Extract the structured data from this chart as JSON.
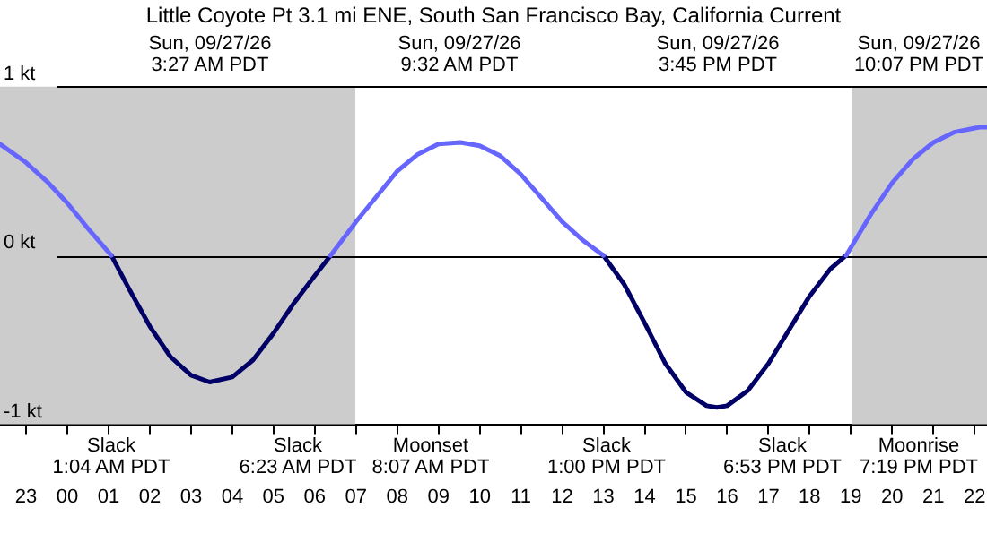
{
  "chart_data": {
    "type": "line",
    "title": "Little Coyote Pt 3.1 mi ENE, South San Francisco Bay, California Current",
    "xlim": [
      "--09-26T22:22",
      "--09-27T22:18"
    ],
    "xticks": [
      {
        "value": "--09-26T23:00",
        "label": "23"
      },
      {
        "value": "--09-27T00:00",
        "label": "00"
      },
      {
        "value": "--09-27T01:00",
        "label": "01"
      },
      {
        "value": "--09-27T02:00",
        "label": "02"
      },
      {
        "value": "--09-27T03:00",
        "label": "03"
      },
      {
        "value": "--09-27T04:00",
        "label": "04"
      },
      {
        "value": "--09-27T05:00",
        "label": "05"
      },
      {
        "value": "--09-27T06:00",
        "label": "06"
      },
      {
        "value": "--09-27T07:00",
        "label": "07"
      },
      {
        "value": "--09-27T08:00",
        "label": "08"
      },
      {
        "value": "--09-27T09:00",
        "label": "09"
      },
      {
        "value": "--09-27T10:00",
        "label": "10"
      },
      {
        "value": "--09-27T11:00",
        "label": "11"
      },
      {
        "value": "--09-27T12:00",
        "label": "12"
      },
      {
        "value": "--09-27T13:00",
        "label": "13"
      },
      {
        "value": "--09-27T14:00",
        "label": "14"
      },
      {
        "value": "--09-27T15:00",
        "label": "15"
      },
      {
        "value": "--09-27T16:00",
        "label": "16"
      },
      {
        "value": "--09-27T17:00",
        "label": "17"
      },
      {
        "value": "--09-27T18:00",
        "label": "18"
      },
      {
        "value": "--09-27T19:00",
        "label": "19"
      },
      {
        "value": "--09-27T20:00",
        "label": "20"
      },
      {
        "value": "--09-27T21:00",
        "label": "21"
      },
      {
        "value": "--09-27T22:00",
        "label": "22"
      }
    ],
    "ylim": [
      -1,
      1
    ],
    "yticks": [
      {
        "value": 1,
        "label": "1 kt"
      },
      {
        "value": 0,
        "label": "0 kt"
      },
      {
        "value": -1,
        "label": "-1 kt"
      }
    ],
    "grid": "y",
    "legend": false,
    "marker": "none",
    "line_style": "solid",
    "bands": [
      {
        "axis": "x",
        "from": "--09-26T22:22",
        "to": "--09-27T06:59",
        "color": "#cccccc"
      },
      {
        "axis": "x",
        "from": "--09-27T19:01",
        "to": "--09-27T22:18",
        "color": "#cccccc"
      }
    ],
    "series": [
      {
        "color": "#6666ff",
        "x": [
          "--09-26T22:22",
          "--09-26T23:00",
          "--09-26T23:30",
          "--09-27T00:00",
          "--09-27T00:30",
          "--09-27T01:04",
          "--09-27T03:27",
          "--09-27T06:23",
          "--09-27T07:00",
          "--09-27T07:30",
          "--09-27T08:00",
          "--09-27T08:30",
          "--09-27T09:00",
          "--09-27T09:32",
          "--09-27T10:00",
          "--09-27T10:30",
          "--09-27T11:00",
          "--09-27T11:30",
          "--09-27T12:00",
          "--09-27T12:30",
          "--09-27T13:00",
          "--09-27T15:45",
          "--09-27T18:53",
          "--09-27T19:30",
          "--09-27T20:00",
          "--09-27T20:30",
          "--09-27T21:00",
          "--09-27T21:30",
          "--09-27T22:07",
          "--09-27T22:18"
        ],
        "values": [
          0.66,
          0.55,
          0.44,
          0.31,
          0.16,
          0,
          null,
          0,
          0.2,
          0.35,
          0.5,
          0.6,
          0.66,
          0.67,
          0.65,
          0.59,
          0.48,
          0.34,
          0.2,
          0.09,
          0,
          null,
          0,
          0.25,
          0.43,
          0.57,
          0.67,
          0.73,
          0.76,
          0.76
        ]
      },
      {
        "color": "#000066",
        "x": [
          "--09-27T01:04",
          "--09-27T01:30",
          "--09-27T02:00",
          "--09-27T02:30",
          "--09-27T03:00",
          "--09-27T03:27",
          "--09-27T04:00",
          "--09-27T04:30",
          "--09-27T05:00",
          "--09-27T05:30",
          "--09-27T06:00",
          "--09-27T06:23",
          "--09-27T09:32",
          "--09-27T13:00",
          "--09-27T13:30",
          "--09-27T14:00",
          "--09-27T14:30",
          "--09-27T15:00",
          "--09-27T15:30",
          "--09-27T15:45",
          "--09-27T16:00",
          "--09-27T16:30",
          "--09-27T17:00",
          "--09-27T17:30",
          "--09-27T18:00",
          "--09-27T18:30",
          "--09-27T18:53"
        ],
        "values": [
          0,
          -0.2,
          -0.42,
          -0.6,
          -0.71,
          -0.75,
          -0.72,
          -0.62,
          -0.46,
          -0.28,
          -0.12,
          0,
          null,
          0,
          -0.17,
          -0.4,
          -0.64,
          -0.81,
          -0.89,
          -0.9,
          -0.89,
          -0.8,
          -0.64,
          -0.44,
          -0.24,
          -0.08,
          0
        ]
      }
    ],
    "annotations": [
      "Sun, 09/27/26\n3:27 AM PDT",
      "Sun, 09/27/26\n9:32 AM PDT",
      "Sun, 09/27/26\n3:45 PM PDT",
      "Sun, 09/27/26\n10:07 PM PDT",
      "Slack\n1:04 AM PDT",
      "Slack\n6:23 AM PDT",
      "Moonset\n8:07 AM PDT",
      "Slack\n1:00 PM PDT",
      "Slack\n6:53 PM PDT",
      "Moonrise\n7:19 PM PDT"
    ]
  }
}
